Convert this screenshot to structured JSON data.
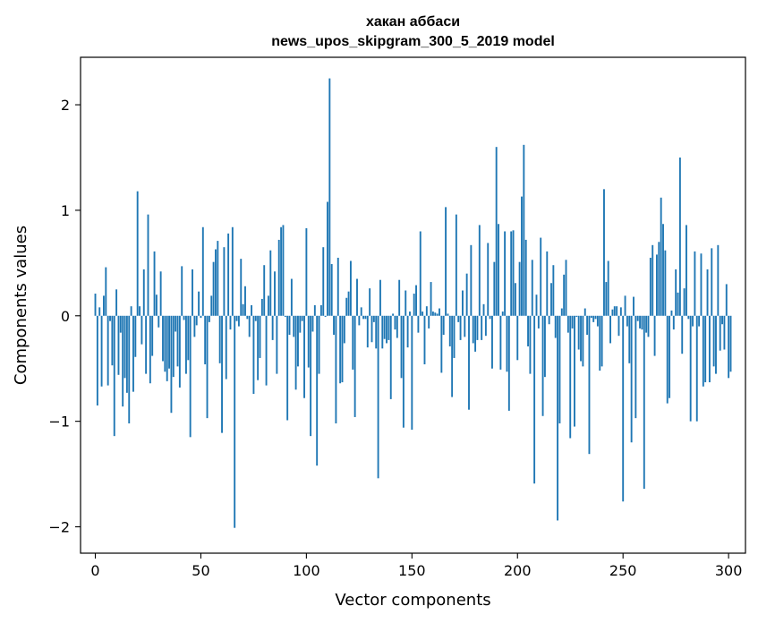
{
  "chart_data": {
    "type": "bar",
    "title": "хакан аббаси",
    "subtitle": "news_upos_skipgram_300_5_2019 model",
    "xlabel": "Vector components",
    "ylabel": "Components values",
    "xlim": [
      -7,
      308
    ],
    "ylim": [
      -2.25,
      2.45
    ],
    "xticks": [
      0,
      50,
      100,
      150,
      200,
      250,
      300
    ],
    "yticks": [
      -2,
      -1,
      0,
      1,
      2
    ],
    "ytick_labels": [
      "−2",
      "−1",
      "0",
      "1",
      "2"
    ],
    "bar_color": "#1f77b4",
    "values": [
      0.21,
      -0.85,
      0.08,
      -0.67,
      0.19,
      0.46,
      -0.66,
      -0.05,
      -0.47,
      -1.14,
      0.25,
      -0.56,
      -0.16,
      -0.86,
      -0.59,
      -0.73,
      -1.02,
      0.09,
      -0.72,
      -0.39,
      1.18,
      0.09,
      -0.27,
      0.44,
      -0.55,
      0.96,
      -0.64,
      -0.38,
      0.61,
      0.2,
      -0.11,
      0.42,
      -0.43,
      -0.53,
      -0.62,
      -0.5,
      -0.92,
      -0.58,
      -0.15,
      -0.48,
      -0.68,
      0.47,
      -0.04,
      -0.55,
      -0.42,
      -1.15,
      0.44,
      -0.2,
      -0.09,
      0.23,
      -0.02,
      0.84,
      -0.46,
      -0.97,
      -0.06,
      0.19,
      0.51,
      0.63,
      0.71,
      -0.45,
      -1.11,
      0.65,
      -0.6,
      0.78,
      -0.13,
      0.84,
      -2.01,
      -0.05,
      -0.1,
      0.54,
      0.11,
      0.28,
      -0.03,
      -0.2,
      0.1,
      -0.74,
      -0.05,
      -0.61,
      -0.4,
      0.16,
      0.48,
      -0.66,
      0.19,
      0.62,
      -0.23,
      0.42,
      -0.55,
      0.72,
      0.84,
      0.86,
      -0.01,
      -0.99,
      -0.18,
      0.35,
      -0.2,
      -0.7,
      -0.48,
      -0.16,
      -0.05,
      -0.78,
      0.83,
      -0.49,
      -1.14,
      -0.15,
      0.1,
      -1.42,
      -0.55,
      0.1,
      0.65,
      -0.01,
      1.08,
      2.25,
      0.49,
      -0.18,
      -1.02,
      0.55,
      -0.64,
      -0.63,
      -0.26,
      0.17,
      0.23,
      0.52,
      -0.51,
      -0.96,
      0.35,
      -0.09,
      0.08,
      -0.03,
      -0.03,
      -0.3,
      0.26,
      -0.25,
      -0.06,
      -0.31,
      -1.54,
      0.34,
      -0.31,
      -0.22,
      -0.26,
      -0.23,
      -0.79,
      0.02,
      -0.13,
      -0.21,
      0.34,
      -0.59,
      -1.06,
      0.24,
      -0.3,
      0.04,
      -1.08,
      0.21,
      0.29,
      -0.16,
      0.8,
      0.04,
      -0.46,
      0.09,
      -0.12,
      0.32,
      0.04,
      0.03,
      0.02,
      0.07,
      -0.54,
      -0.18,
      1.03,
      0.02,
      -0.29,
      -0.77,
      -0.4,
      0.96,
      -0.06,
      -0.23,
      0.24,
      -0.2,
      0.4,
      -0.89,
      0.67,
      -0.26,
      -0.34,
      -0.23,
      0.86,
      -0.23,
      0.11,
      -0.19,
      0.69,
      -0.03,
      -0.5,
      0.51,
      1.6,
      0.87,
      -0.51,
      0.04,
      0.8,
      -0.53,
      -0.9,
      0.8,
      0.81,
      0.31,
      -0.42,
      0.51,
      1.13,
      1.62,
      0.72,
      -0.29,
      -0.55,
      0.53,
      -1.59,
      0.2,
      -0.12,
      0.74,
      -0.95,
      -0.58,
      0.61,
      -0.08,
      0.31,
      0.48,
      -0.21,
      -1.94,
      -1.02,
      0.07,
      0.39,
      0.53,
      -0.16,
      -1.16,
      -0.12,
      -1.05,
      -0.01,
      -0.32,
      -0.43,
      -0.48,
      0.07,
      -0.18,
      -1.31,
      -0.02,
      -0.06,
      -0.03,
      -0.1,
      -0.52,
      -0.48,
      1.2,
      0.32,
      0.52,
      -0.26,
      0.06,
      0.09,
      0.09,
      -0.19,
      0.08,
      -1.76,
      0.19,
      -0.1,
      -0.45,
      -1.2,
      0.18,
      -0.97,
      -0.05,
      -0.12,
      -0.13,
      -1.64,
      -0.16,
      -0.2,
      0.55,
      0.67,
      -0.38,
      0.58,
      0.7,
      1.12,
      0.87,
      0.62,
      -0.83,
      -0.78,
      0.05,
      -0.13,
      0.44,
      0.22,
      1.5,
      -0.36,
      0.26,
      0.86,
      -0.03,
      -1.0,
      -0.1,
      0.61,
      -1.0,
      -0.1,
      0.59,
      -0.67,
      -0.63,
      0.44,
      -0.63,
      0.64,
      -0.48,
      -0.55,
      0.67,
      -0.33,
      -0.08,
      -0.32,
      0.3,
      -0.59,
      -0.53
    ]
  }
}
